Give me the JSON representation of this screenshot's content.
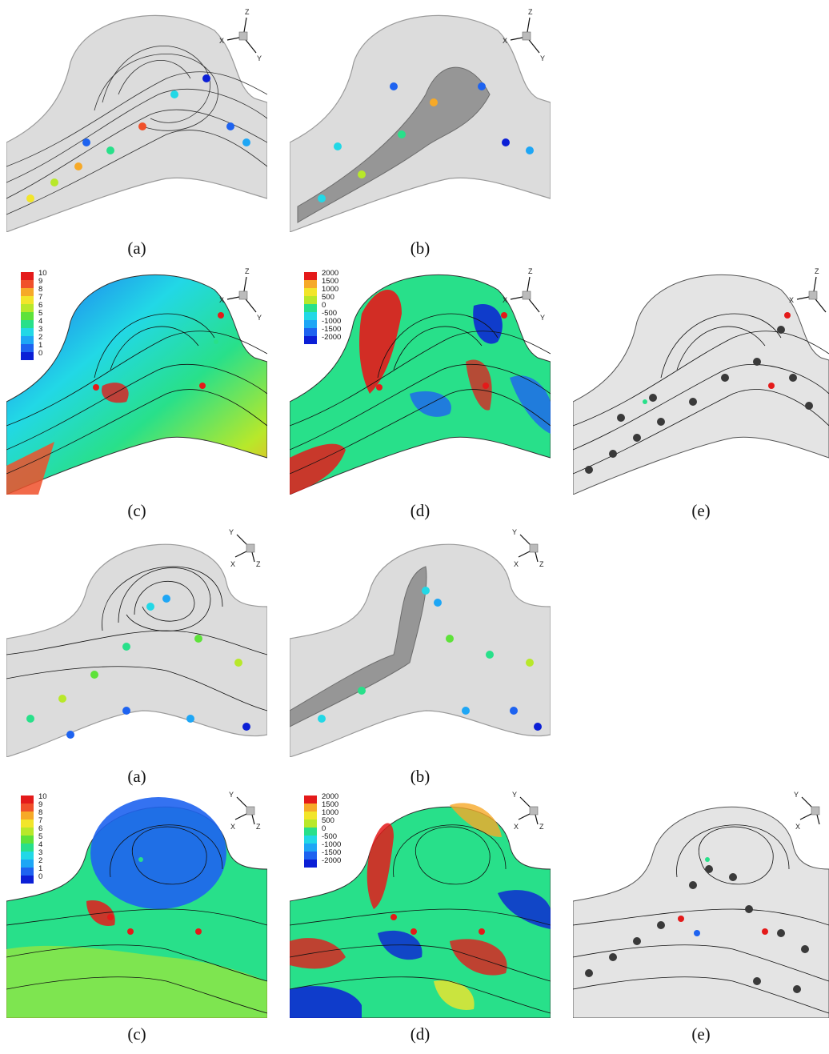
{
  "figure": {
    "captions": {
      "r1a": "(a)",
      "r1b": "(b)",
      "r2c": "(c)",
      "r2d": "(d)",
      "r2e": "(e)",
      "r3a": "(a)",
      "r3b": "(b)",
      "r4c": "(c)",
      "r4d": "(d)",
      "r4e": "(e)"
    },
    "colorbar_c": [
      "10",
      "9",
      "8",
      "7",
      "6",
      "5",
      "4",
      "3",
      "2",
      "1",
      "0"
    ],
    "colorbar_d": [
      "2000",
      "1500",
      "1000",
      "500",
      "0",
      "-500",
      "-1000",
      "-1500",
      "-2000"
    ],
    "axes_iso": {
      "z": "Z",
      "x": "X",
      "y": "Y"
    },
    "axes_top": {
      "y": "Y",
      "x": "X",
      "z": "Z"
    }
  },
  "palette": {
    "colormap": [
      "#0b1fd6",
      "#1e63f0",
      "#1ea6f5",
      "#22d8e6",
      "#28e08a",
      "#5ee23a",
      "#b8e82a",
      "#f2e52a",
      "#f6a928",
      "#f0502a",
      "#e41a1a"
    ],
    "vessel_gray": "#d9d9d9",
    "streamline": "#111111",
    "particle_dark": "#3a3a3a"
  }
}
